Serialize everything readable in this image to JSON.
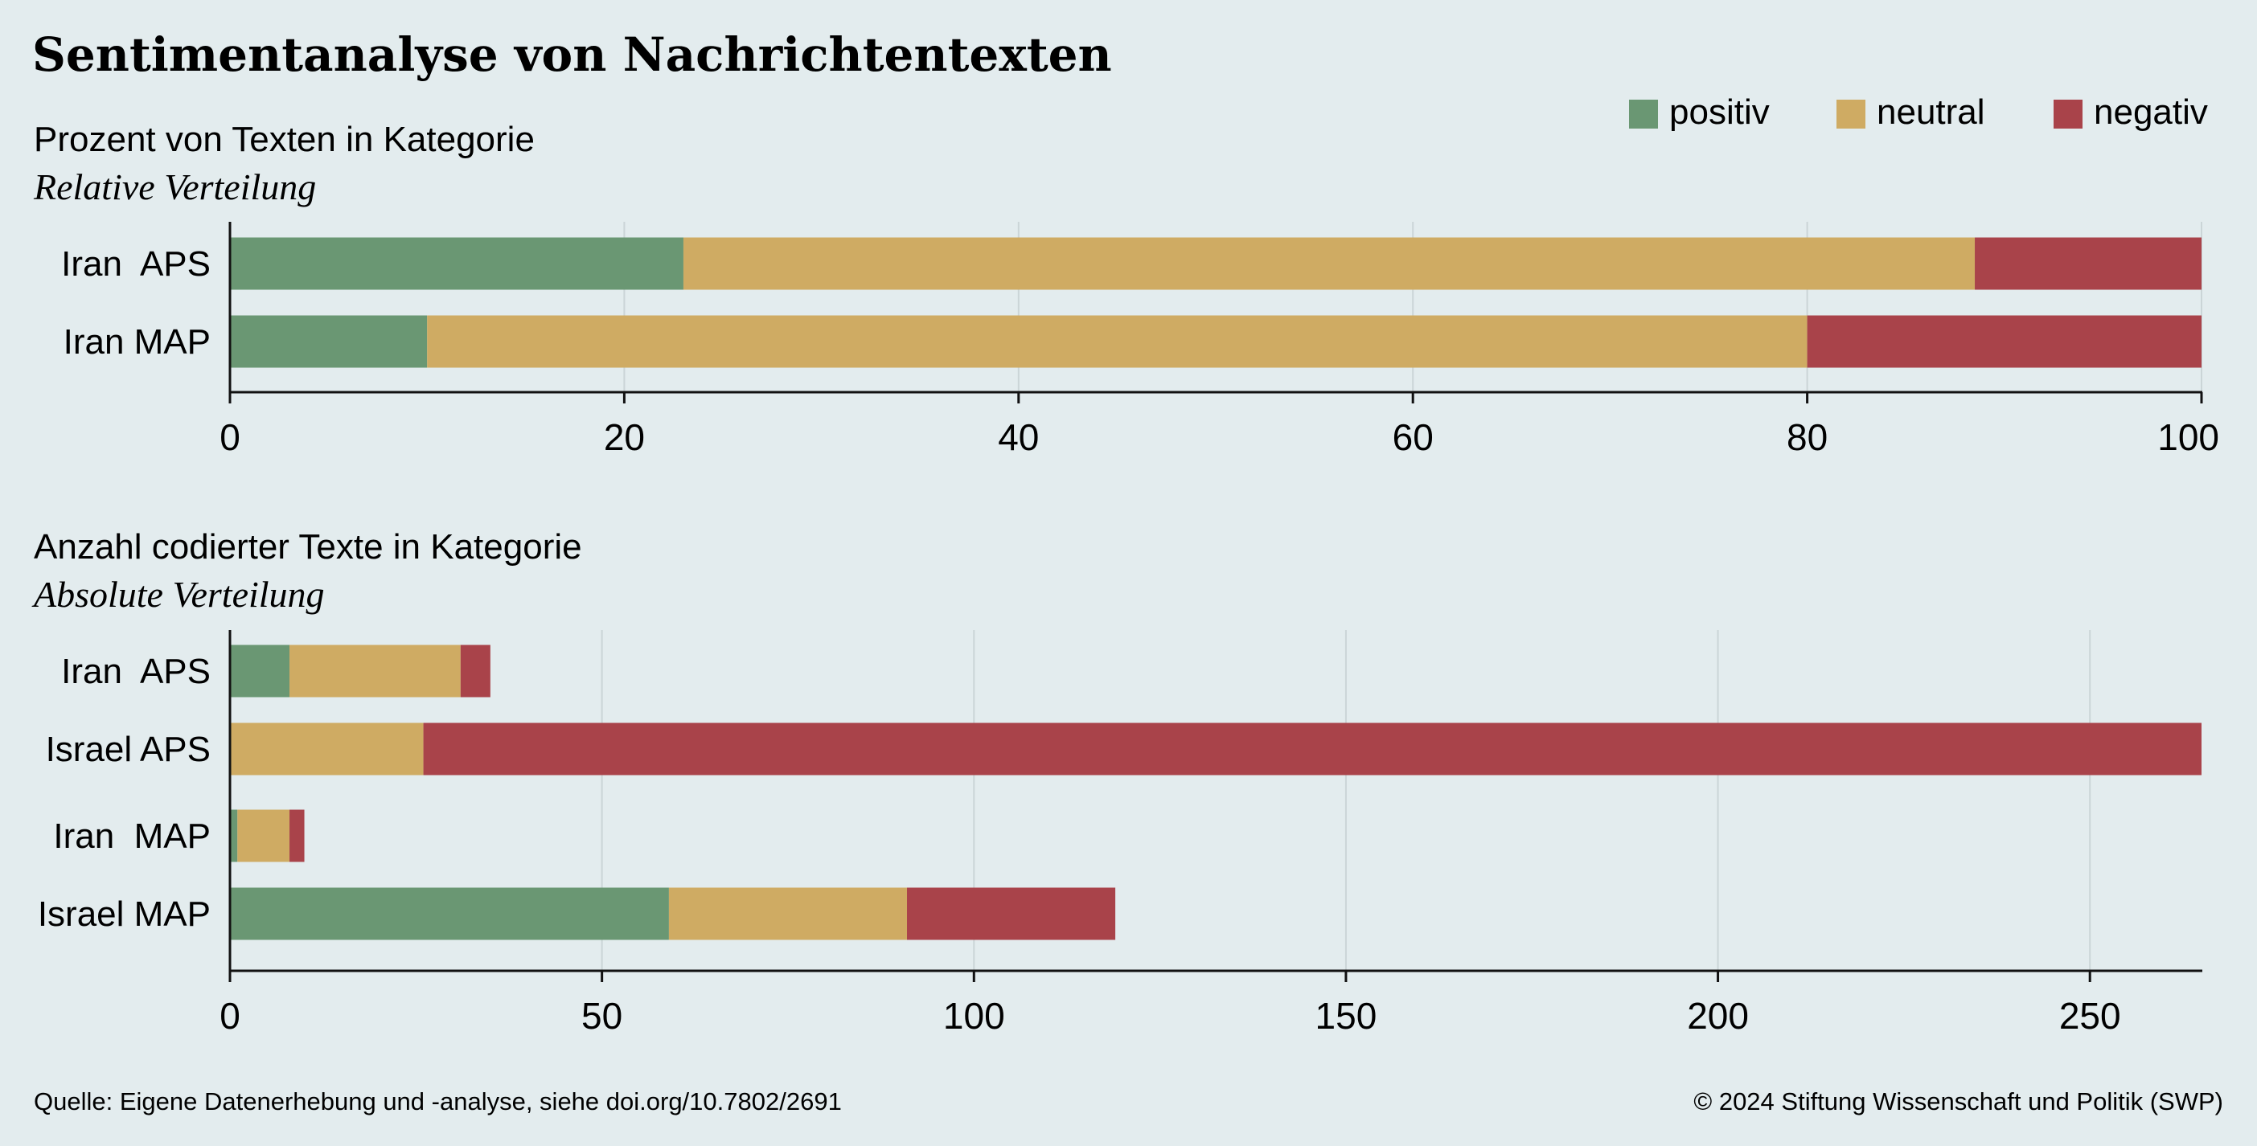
{
  "title": "Sentimentanalyse von Nachrichtentexten",
  "legend": [
    {
      "label": "positiv",
      "color": "#6a9773"
    },
    {
      "label": "neutral",
      "color": "#cfab63"
    },
    {
      "label": "negativ",
      "color": "#a9434a"
    }
  ],
  "footer": {
    "source": "Quelle: Eigene Datenerhebung und -analyse, siehe doi.org/10.7802/2691",
    "copyright": "© 2024 Stiftung Wissenschaft und Politik (SWP)"
  },
  "chart_data": [
    {
      "type": "bar",
      "orientation": "horizontal",
      "stacked": true,
      "subtitle": "Prozent von Texten in Kategorie",
      "subtitle2": "Relative Verteilung",
      "categories": [
        "Iran  APS",
        "Iran MAP"
      ],
      "series": [
        {
          "name": "positiv",
          "values": [
            23,
            10
          ]
        },
        {
          "name": "neutral",
          "values": [
            65.5,
            70
          ]
        },
        {
          "name": "negativ",
          "values": [
            11.5,
            20
          ]
        }
      ],
      "xlim": [
        0,
        100
      ],
      "xticks": [
        0,
        20,
        40,
        60,
        80,
        100
      ],
      "grid": true,
      "legend_position": "top-right"
    },
    {
      "type": "bar",
      "orientation": "horizontal",
      "stacked": true,
      "subtitle": "Anzahl codierter Texte in Kategorie",
      "subtitle2": "Absolute Verteilung",
      "categories": [
        "Iran  APS",
        "Israel APS",
        "Iran  MAP",
        "Israel MAP"
      ],
      "series": [
        {
          "name": "positiv",
          "values": [
            8,
            0,
            1,
            59
          ]
        },
        {
          "name": "neutral",
          "values": [
            23,
            26,
            7,
            32
          ]
        },
        {
          "name": "negativ",
          "values": [
            4,
            239,
            2,
            28
          ]
        }
      ],
      "xlim": [
        0,
        265
      ],
      "xticks": [
        0,
        50,
        100,
        150,
        200,
        250
      ],
      "grid": true
    }
  ]
}
